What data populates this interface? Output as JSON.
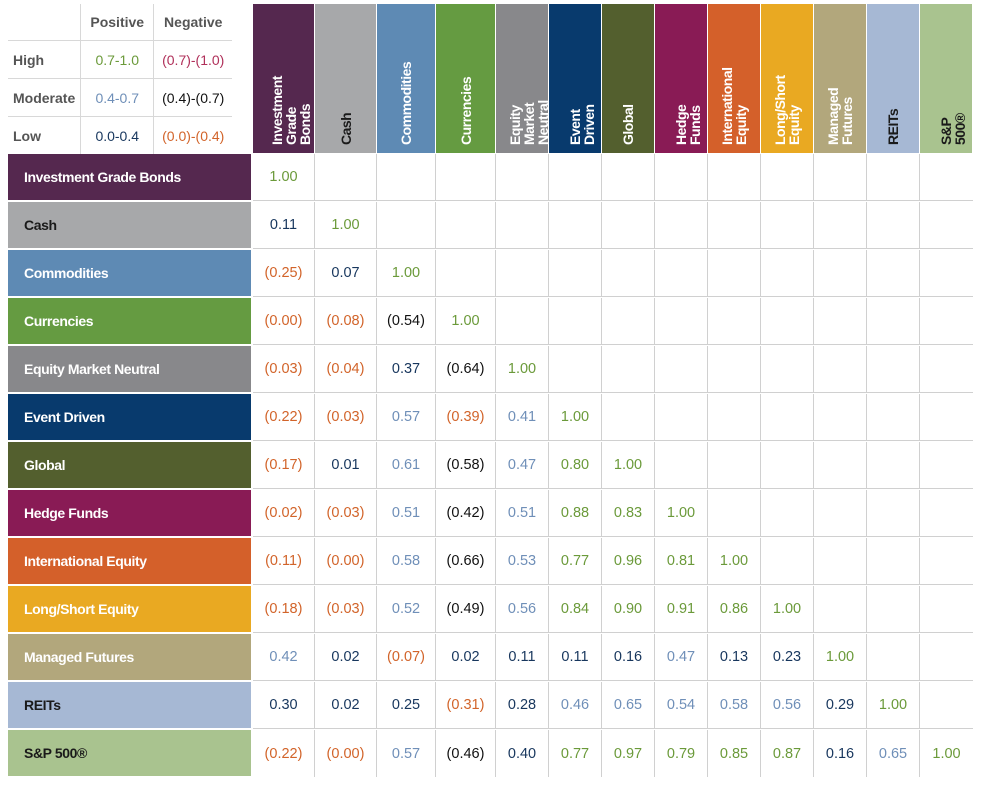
{
  "legend": {
    "headers": [
      "Positive",
      "Negative"
    ],
    "rows": [
      {
        "label": "High",
        "positive": "0.7-1.0",
        "negative": "(0.7)-(1.0)",
        "pos_color": "#6b9a3a",
        "neg_color": "#b0305a"
      },
      {
        "label": "Moderate",
        "positive": "0.4-0.7",
        "negative": "(0.4)-(0.7)",
        "pos_color": "#6f8fb8",
        "neg_color": "#111111"
      },
      {
        "label": "Low",
        "positive": "0.0-0.4",
        "negative": "(0.0)-(0.4)",
        "pos_color": "#17365d",
        "neg_color": "#d2642a"
      }
    ]
  },
  "chart_data": {
    "type": "heatmap",
    "title": "",
    "assets": [
      {
        "name": "Investment Grade Bonds",
        "col_label": "Investment\nGrade Bonds",
        "color": "#55284f",
        "text": "#ffffff"
      },
      {
        "name": "Cash",
        "col_label": "Cash",
        "color": "#a7a8aa",
        "text": "#1a1a1a"
      },
      {
        "name": "Commodities",
        "col_label": "Commodities",
        "color": "#5e8ab4",
        "text": "#ffffff"
      },
      {
        "name": "Currencies",
        "col_label": "Currencies",
        "color": "#659b41",
        "text": "#ffffff"
      },
      {
        "name": "Equity Market Neutral",
        "col_label": "Equity Market\nNeutral",
        "color": "#88888b",
        "text": "#ffffff"
      },
      {
        "name": "Event Driven",
        "col_label": "Event Driven",
        "color": "#083a6d",
        "text": "#ffffff"
      },
      {
        "name": "Global",
        "col_label": "Global",
        "color": "#535f2e",
        "text": "#ffffff"
      },
      {
        "name": "Hedge Funds",
        "col_label": "Hedge Funds",
        "color": "#891b55",
        "text": "#ffffff"
      },
      {
        "name": "International Equity",
        "col_label": "International\nEquity",
        "color": "#d4602a",
        "text": "#ffffff"
      },
      {
        "name": "Long/Short Equity",
        "col_label": "Long/Short\nEquity",
        "color": "#e9a922",
        "text": "#ffffff"
      },
      {
        "name": "Managed Futures",
        "col_label": "Managed\nFutures",
        "color": "#b2a77c",
        "text": "#ffffff"
      },
      {
        "name": "REITs",
        "col_label": "REITs",
        "color": "#a6b8d4",
        "text": "#1a1a1a"
      },
      {
        "name": "S&P 500®",
        "col_label": "S&P 500®",
        "color": "#a9c38f",
        "text": "#1a1a1a"
      }
    ],
    "matrix": [
      [
        "1.00"
      ],
      [
        "0.11",
        "1.00"
      ],
      [
        "(0.25)",
        "0.07",
        "1.00"
      ],
      [
        "(0.00)",
        "(0.08)",
        "(0.54)",
        "1.00"
      ],
      [
        "(0.03)",
        "(0.04)",
        "0.37",
        "(0.64)",
        "1.00"
      ],
      [
        "(0.22)",
        "(0.03)",
        "0.57",
        "(0.39)",
        "0.41",
        "1.00"
      ],
      [
        "(0.17)",
        "0.01",
        "0.61",
        "(0.58)",
        "0.47",
        "0.80",
        "1.00"
      ],
      [
        "(0.02)",
        "(0.03)",
        "0.51",
        "(0.42)",
        "0.51",
        "0.88",
        "0.83",
        "1.00"
      ],
      [
        "(0.11)",
        "(0.00)",
        "0.58",
        "(0.66)",
        "0.53",
        "0.77",
        "0.96",
        "0.81",
        "1.00"
      ],
      [
        "(0.18)",
        "(0.03)",
        "0.52",
        "(0.49)",
        "0.56",
        "0.84",
        "0.90",
        "0.91",
        "0.86",
        "1.00"
      ],
      [
        "0.42",
        "0.02",
        "(0.07)",
        "0.02",
        "0.11",
        "0.11",
        "0.16",
        "0.47",
        "0.13",
        "0.23",
        "1.00"
      ],
      [
        "0.30",
        "0.02",
        "0.25",
        "(0.31)",
        "0.28",
        "0.46",
        "0.65",
        "0.54",
        "0.58",
        "0.56",
        "0.29",
        "1.00"
      ],
      [
        "(0.22)",
        "(0.00)",
        "0.57",
        "(0.46)",
        "0.40",
        "0.77",
        "0.97",
        "0.79",
        "0.85",
        "0.87",
        "0.16",
        "0.65",
        "1.00"
      ]
    ],
    "value_colors": {
      "high_pos": "#6b9a3a",
      "mod_pos": "#6f8fb8",
      "low_pos": "#17365d",
      "high_neg": "#b0305a",
      "mod_neg": "#111111",
      "low_neg": "#d2642a"
    }
  }
}
